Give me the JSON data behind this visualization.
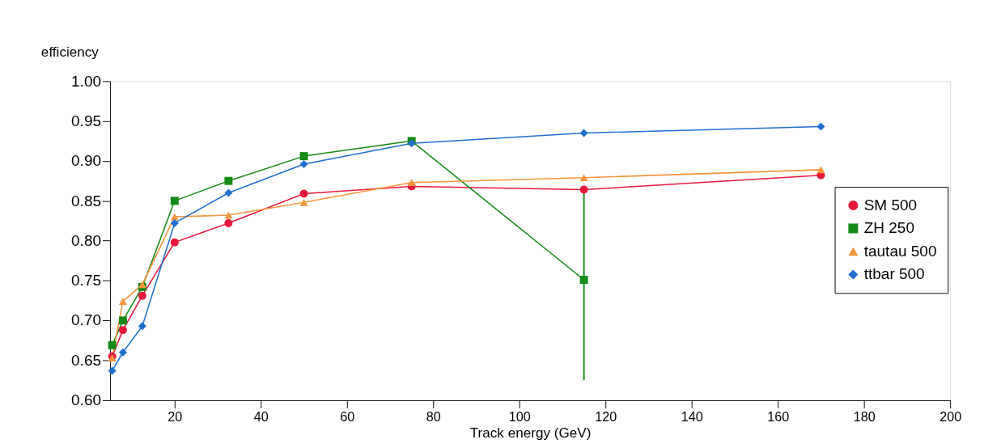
{
  "chart_data": {
    "type": "line",
    "xlabel": "Track energy (GeV)",
    "ylabel": "efficiency",
    "x": [
      5.5,
      8,
      12.5,
      20,
      32.5,
      50,
      75,
      115,
      170
    ],
    "xlim": [
      5,
      200
    ],
    "xticks": [
      20,
      40,
      60,
      80,
      100,
      120,
      140,
      160,
      180,
      200
    ],
    "ylim": [
      0.6,
      1.0
    ],
    "yticks": [
      {
        "value": 0.6,
        "label": "0.60"
      },
      0.65,
      {
        "value": 0.7,
        "label": "0.70"
      },
      0.75,
      {
        "value": 0.8,
        "label": "0.80"
      },
      0.85,
      {
        "value": 0.9,
        "label": "0.90"
      },
      0.95,
      {
        "value": 1.0,
        "label": "1.00"
      }
    ],
    "grid": false,
    "legend": "right",
    "series": [
      {
        "name": "SM 500",
        "color": "#e8173c",
        "marker": "circle",
        "values": [
          0.655,
          0.688,
          0.731,
          0.798,
          0.822,
          0.859,
          0.868,
          0.864,
          0.882
        ]
      },
      {
        "name": "ZH 250",
        "color": "#168a16",
        "marker": "square",
        "values": [
          0.669,
          0.7,
          0.742,
          0.85,
          0.875,
          0.906,
          0.925,
          0.751,
          null
        ],
        "errors": [
          null,
          null,
          null,
          null,
          null,
          null,
          null,
          [
            0.625,
            0.865
          ],
          null
        ]
      },
      {
        "name": "tautau 500",
        "color": "#f5943a",
        "marker": "triangle",
        "values": [
          0.653,
          0.724,
          0.745,
          0.83,
          0.832,
          0.848,
          0.873,
          0.879,
          0.889
        ]
      },
      {
        "name": "ttbar 500",
        "color": "#1f6fd1",
        "marker": "diamond",
        "values": [
          0.637,
          0.66,
          0.693,
          0.822,
          0.86,
          0.896,
          0.922,
          0.935,
          0.943
        ]
      }
    ]
  }
}
